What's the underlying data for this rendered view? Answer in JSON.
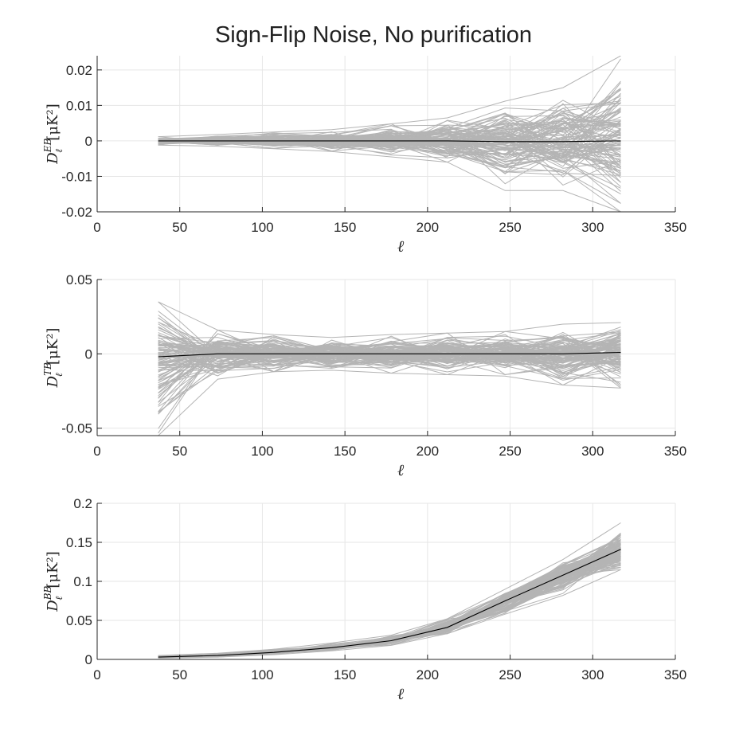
{
  "figure": {
    "title": "Sign-Flip Noise, No purification"
  },
  "style": {
    "realization_color": "#b4b4b4",
    "mean_color": "#000000",
    "grid_color": "#e6e6e6",
    "axis_color": "#262626"
  },
  "chart_data": [
    {
      "type": "line",
      "id": "eb",
      "ylabel": {
        "base": "D",
        "sup": "EB",
        "sub": "ℓ",
        "unit": "[μK²]"
      },
      "xlabel": "ℓ",
      "xlim": [
        0,
        350
      ],
      "ylim": [
        -0.02,
        0.024
      ],
      "xticks": [
        0,
        50,
        100,
        150,
        200,
        250,
        300,
        350
      ],
      "yticks": [
        -0.02,
        -0.01,
        0,
        0.01,
        0.02
      ],
      "ytick_labels": [
        "-0.02",
        "-0.01",
        "0",
        "0.01",
        "0.02"
      ],
      "grid": true,
      "x": [
        37,
        73,
        107,
        142,
        178,
        212,
        247,
        282,
        317
      ],
      "series": [
        {
          "role": "mean",
          "values": [
            0.0,
            0.0,
            0.0,
            0.0,
            0.0,
            0.0,
            -0.0002,
            -0.0002,
            0.0
          ]
        },
        {
          "role": "realizations_upper_envelope",
          "values": [
            0.0012,
            0.0018,
            0.0025,
            0.0032,
            0.0048,
            0.0065,
            0.0112,
            0.015,
            0.024
          ]
        },
        {
          "role": "realizations_lower_envelope",
          "values": [
            -0.0012,
            -0.0015,
            -0.0022,
            -0.003,
            -0.0045,
            -0.006,
            -0.014,
            -0.014,
            -0.02
          ]
        }
      ]
    },
    {
      "type": "line",
      "id": "tb",
      "ylabel": {
        "base": "D",
        "sup": "TB",
        "sub": "ℓ",
        "unit": "[μK²]"
      },
      "xlabel": "ℓ",
      "xlim": [
        0,
        350
      ],
      "ylim": [
        -0.055,
        0.05
      ],
      "xticks": [
        0,
        50,
        100,
        150,
        200,
        250,
        300,
        350
      ],
      "yticks": [
        -0.05,
        0,
        0.05
      ],
      "ytick_labels": [
        "-0.05",
        "0",
        "0.05"
      ],
      "grid": true,
      "x": [
        37,
        73,
        107,
        142,
        178,
        212,
        247,
        282,
        317
      ],
      "series": [
        {
          "role": "mean",
          "values": [
            -0.002,
            0.0,
            0.0,
            0.0,
            0.0,
            0.0,
            0.0,
            0.0,
            0.001
          ]
        },
        {
          "role": "realizations_upper_envelope",
          "values": [
            0.035,
            0.016,
            0.013,
            0.011,
            0.013,
            0.014,
            0.015,
            0.02,
            0.021
          ]
        },
        {
          "role": "realizations_lower_envelope",
          "values": [
            -0.055,
            -0.017,
            -0.012,
            -0.011,
            -0.013,
            -0.014,
            -0.015,
            -0.021,
            -0.023
          ]
        }
      ]
    },
    {
      "type": "line",
      "id": "bb",
      "ylabel": {
        "base": "D",
        "sup": "BB",
        "sub": "ℓ",
        "unit": "[μK²]"
      },
      "xlabel": "ℓ",
      "xlim": [
        0,
        350
      ],
      "ylim": [
        0,
        0.2
      ],
      "xticks": [
        0,
        50,
        100,
        150,
        200,
        250,
        300,
        350
      ],
      "yticks": [
        0,
        0.05,
        0.1,
        0.15,
        0.2
      ],
      "ytick_labels": [
        "0",
        "0.05",
        "0.1",
        "0.15",
        "0.2"
      ],
      "grid": true,
      "x": [
        37,
        73,
        107,
        142,
        178,
        212,
        247,
        282,
        317
      ],
      "series": [
        {
          "role": "mean",
          "values": [
            0.003,
            0.005,
            0.009,
            0.015,
            0.024,
            0.041,
            0.075,
            0.108,
            0.141
          ]
        },
        {
          "role": "realizations_upper_envelope",
          "values": [
            0.005,
            0.008,
            0.013,
            0.021,
            0.031,
            0.052,
            0.09,
            0.128,
            0.175
          ]
        },
        {
          "role": "realizations_lower_envelope",
          "values": [
            0.0015,
            0.003,
            0.006,
            0.011,
            0.018,
            0.033,
            0.058,
            0.082,
            0.115
          ]
        }
      ]
    }
  ]
}
